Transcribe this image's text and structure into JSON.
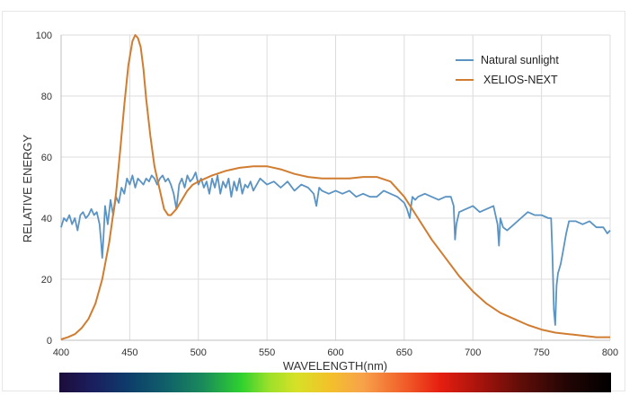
{
  "chart_data": {
    "type": "line",
    "title": "",
    "xlabel": "WAVELENGTH(nm)",
    "ylabel": "RELATIVE ENERGY",
    "xlim": [
      400,
      800
    ],
    "ylim": [
      0,
      100
    ],
    "x_ticks": [
      "400",
      "450",
      "500",
      "550",
      "600",
      "650",
      "700",
      "750",
      "800"
    ],
    "y_ticks": [
      "0",
      "20",
      "40",
      "60",
      "80",
      "100"
    ],
    "grid": true,
    "legend_position": "top-right",
    "colors": {
      "sunlight": "#5b93c2",
      "xelios": "#d07d32"
    },
    "spectrum_bar": true,
    "series": [
      {
        "name": "Natural sunlight",
        "x": [
          400,
          402,
          404,
          406,
          408,
          410,
          412,
          414,
          416,
          418,
          420,
          422,
          424,
          426,
          428,
          429,
          430,
          431,
          432,
          434,
          436,
          438,
          440,
          442,
          444,
          446,
          448,
          450,
          452,
          454,
          456,
          458,
          460,
          462,
          464,
          466,
          468,
          470,
          472,
          474,
          476,
          478,
          480,
          482,
          484,
          486,
          488,
          490,
          492,
          494,
          496,
          498,
          500,
          502,
          504,
          506,
          508,
          510,
          512,
          514,
          516,
          518,
          520,
          522,
          524,
          526,
          528,
          530,
          532,
          534,
          536,
          538,
          540,
          545,
          550,
          555,
          560,
          565,
          570,
          575,
          580,
          584,
          586,
          588,
          590,
          595,
          600,
          605,
          610,
          615,
          620,
          625,
          630,
          635,
          640,
          645,
          650,
          652,
          654,
          655,
          656,
          658,
          660,
          665,
          670,
          675,
          680,
          684,
          686,
          687,
          688,
          690,
          695,
          700,
          705,
          710,
          715,
          718,
          719,
          720,
          722,
          725,
          730,
          735,
          740,
          745,
          750,
          755,
          757,
          758,
          759,
          760,
          761,
          762,
          764,
          766,
          768,
          770,
          775,
          780,
          785,
          790,
          795,
          798,
          800
        ],
        "values": [
          37,
          40,
          39,
          41,
          38,
          40,
          36,
          41,
          42,
          40,
          41,
          43,
          41,
          42,
          38,
          33,
          27,
          35,
          44,
          38,
          46,
          41,
          47,
          45,
          50,
          48,
          53,
          51,
          54,
          50,
          53,
          52,
          51,
          53,
          52,
          54,
          53,
          51,
          53,
          54,
          52,
          53,
          51,
          48,
          43,
          51,
          53,
          50,
          54,
          52,
          53,
          55,
          51,
          53,
          50,
          52,
          48,
          53,
          50,
          54,
          48,
          52,
          50,
          53,
          47,
          52,
          49,
          53,
          48,
          51,
          50,
          52,
          49,
          53,
          51,
          52,
          50,
          52,
          49,
          51,
          50,
          48,
          44,
          50,
          49,
          48,
          49,
          48,
          49,
          47,
          48,
          47,
          47,
          49,
          48,
          47,
          45,
          43,
          40,
          44,
          47,
          46,
          47,
          48,
          47,
          46,
          47,
          47,
          44,
          33,
          38,
          42,
          43,
          44,
          42,
          43,
          44,
          38,
          31,
          40,
          37,
          36,
          38,
          40,
          42,
          41,
          41,
          40,
          40,
          28,
          10,
          5,
          18,
          22,
          25,
          30,
          35,
          39,
          39,
          38,
          39,
          37,
          37,
          35,
          36
        ]
      },
      {
        "name": "XELIOS-NEXT",
        "x": [
          400,
          405,
          410,
          415,
          420,
          425,
          430,
          435,
          440,
          443,
          446,
          449,
          452,
          454,
          456,
          458,
          460,
          462,
          465,
          468,
          470,
          472,
          475,
          478,
          480,
          484,
          488,
          492,
          496,
          500,
          510,
          520,
          530,
          540,
          550,
          560,
          570,
          580,
          590,
          600,
          610,
          620,
          630,
          640,
          650,
          660,
          670,
          680,
          690,
          700,
          710,
          720,
          730,
          740,
          750,
          760,
          770,
          780,
          790,
          800
        ],
        "values": [
          0.3,
          1,
          2,
          4,
          7,
          12,
          20,
          32,
          48,
          62,
          77,
          90,
          98,
          100,
          99,
          96,
          89,
          79,
          67,
          57,
          53,
          49,
          43,
          41,
          41,
          43,
          46,
          49,
          51,
          52,
          54,
          55.5,
          56.5,
          57,
          57,
          56,
          54.5,
          53.5,
          53,
          53,
          53,
          53.5,
          53.5,
          52,
          47,
          40,
          33,
          27,
          21,
          16,
          12,
          9,
          7,
          5,
          3.5,
          2.5,
          2,
          1.5,
          1,
          1
        ]
      }
    ]
  }
}
